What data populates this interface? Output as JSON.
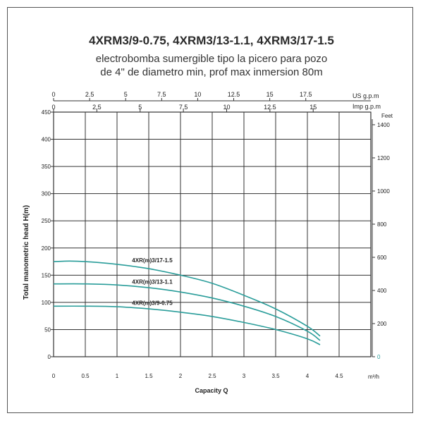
{
  "chart_data": {
    "type": "line",
    "title": "4XRM3/9-0.75, 4XRM3/13-1.1, 4XRM3/17-1.5",
    "subtitle_line1": "electrobomba sumergible tipo la picero para pozo",
    "subtitle_line2": "de 4\" de diametro min, prof max inmersion 80m",
    "xlabel": "Capacity Q",
    "xunit": "m³/h",
    "ylabel": "Total manometric head H(m)",
    "xlim": [
      0,
      5
    ],
    "ylim": [
      0,
      450
    ],
    "grid": true,
    "x_ticks": [
      "0",
      "0.5",
      "1",
      "1.5",
      "2",
      "2.5",
      "3",
      "3.5",
      "4",
      "4.5"
    ],
    "y_ticks": [
      "0",
      "50",
      "100",
      "150",
      "200",
      "250",
      "300",
      "350",
      "400",
      "450"
    ],
    "top_axis_us": {
      "label": "US g.p.m",
      "ticks": [
        "0",
        "2.5",
        "5",
        "7.5",
        "10",
        "12.5",
        "15",
        "17.5"
      ],
      "values": [
        0,
        2.5,
        5,
        7.5,
        10,
        12.5,
        15,
        17.5
      ]
    },
    "top_axis_imp": {
      "label": "Imp g.p.m",
      "ticks": [
        "0",
        "2.5",
        "5",
        "7.5",
        "10",
        "12.5",
        "15"
      ],
      "values": [
        0,
        2.5,
        5,
        7.5,
        10,
        12.5,
        15
      ]
    },
    "right_axis": {
      "label": "Feet",
      "ticks": [
        "0",
        "200",
        "400",
        "600",
        "800",
        "1000",
        "1200",
        "1400"
      ],
      "values": [
        0,
        200,
        400,
        600,
        800,
        1000,
        1200,
        1400
      ]
    },
    "series": [
      {
        "name": "4XR(m)3/17-1.5",
        "color": "#2a9d9a",
        "x": [
          0,
          0.25,
          0.5,
          1,
          1.5,
          2,
          2.5,
          3,
          3.5,
          4,
          4.2
        ],
        "y": [
          175,
          176,
          175,
          170,
          162,
          150,
          135,
          113,
          88,
          56,
          38
        ]
      },
      {
        "name": "4XR(m)3/13-1.1",
        "color": "#2a9d9a",
        "x": [
          0,
          0.5,
          1,
          1.5,
          2,
          2.5,
          3,
          3.5,
          4,
          4.2
        ],
        "y": [
          134,
          134,
          132,
          127,
          119,
          108,
          93,
          74,
          47,
          30
        ]
      },
      {
        "name": "4XR(m)3/9-0.75",
        "color": "#2a9d9a",
        "x": [
          0,
          0.5,
          1,
          1.5,
          2,
          2.5,
          3,
          3.5,
          4,
          4.2
        ],
        "y": [
          93,
          93,
          92,
          88,
          82,
          74,
          63,
          50,
          33,
          22
        ]
      }
    ]
  }
}
